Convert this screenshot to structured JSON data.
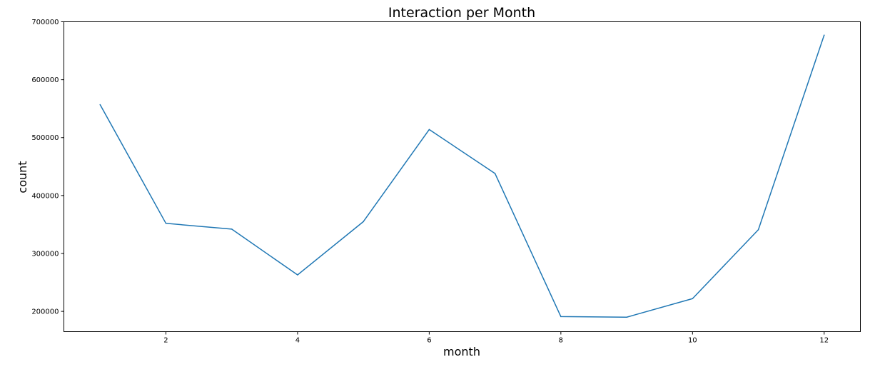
{
  "chart_data": {
    "type": "line",
    "title": "Interaction per Month",
    "xlabel": "month",
    "ylabel": "count",
    "x": [
      1,
      2,
      3,
      4,
      5,
      6,
      7,
      8,
      9,
      10,
      11,
      12
    ],
    "series": [
      {
        "values": [
          557000,
          352000,
          342000,
          263000,
          355000,
          514000,
          438000,
          191000,
          190000,
          222000,
          341000,
          677000
        ],
        "color": "#1f77b4"
      }
    ],
    "xlim": [
      0.45,
      12.55
    ],
    "ylim": [
      165000,
      700000
    ],
    "xticks": [
      2,
      4,
      6,
      8,
      10,
      12
    ],
    "yticks": [
      200000,
      300000,
      400000,
      500000,
      600000,
      700000
    ],
    "grid": false,
    "legend": "none"
  }
}
